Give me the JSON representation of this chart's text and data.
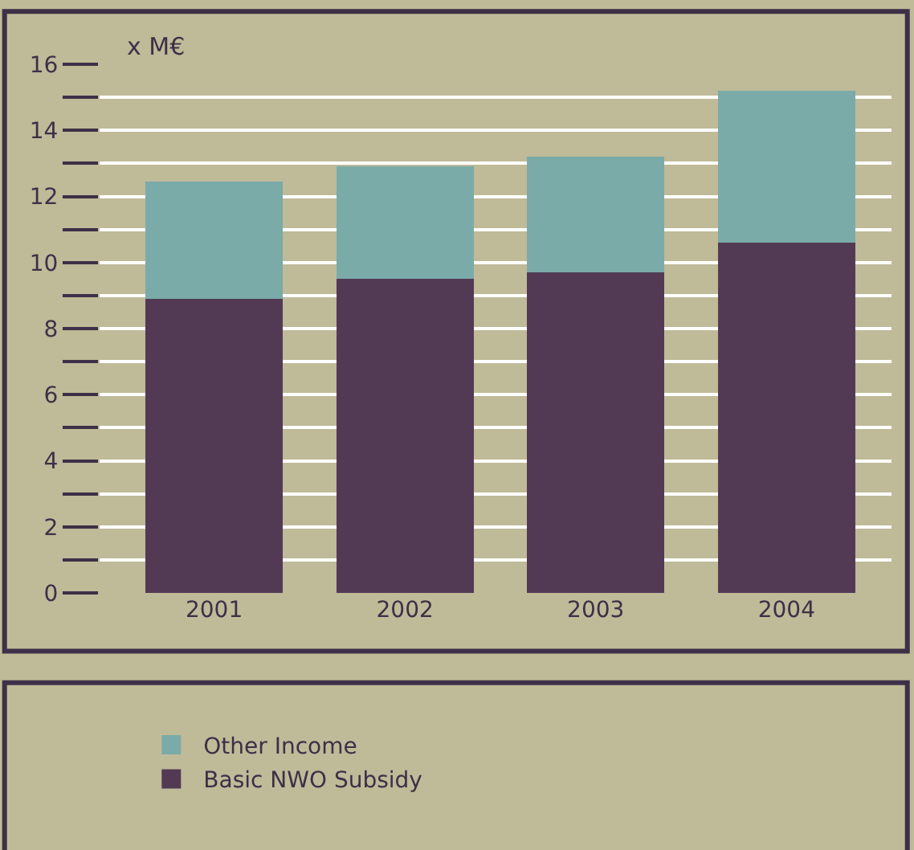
{
  "chart_data": {
    "type": "bar",
    "stacked": true,
    "ylabel": "x M€",
    "categories": [
      "2001",
      "2002",
      "2003",
      "2004"
    ],
    "series": [
      {
        "name": "Basic NWO Subsidy",
        "color": "#523a55",
        "values": [
          8.9,
          9.5,
          9.7,
          10.6
        ]
      },
      {
        "name": "Other Income",
        "color": "#7aaba8",
        "values": [
          3.55,
          3.4,
          3.5,
          4.6
        ]
      }
    ],
    "ylim": [
      0,
      16
    ],
    "yticks": [
      0,
      {
        "value": 1,
        "label": null
      },
      2,
      {
        "value": 3,
        "label": null
      },
      4,
      {
        "value": 5,
        "label": null
      },
      6,
      {
        "value": 7,
        "label": null
      },
      8,
      {
        "value": 9,
        "label": null
      },
      10,
      {
        "value": 11,
        "label": null
      },
      12,
      {
        "value": 13,
        "label": null
      },
      14,
      {
        "value": 15,
        "label": null
      },
      16
    ],
    "grid": true,
    "legend": "bottom"
  }
}
